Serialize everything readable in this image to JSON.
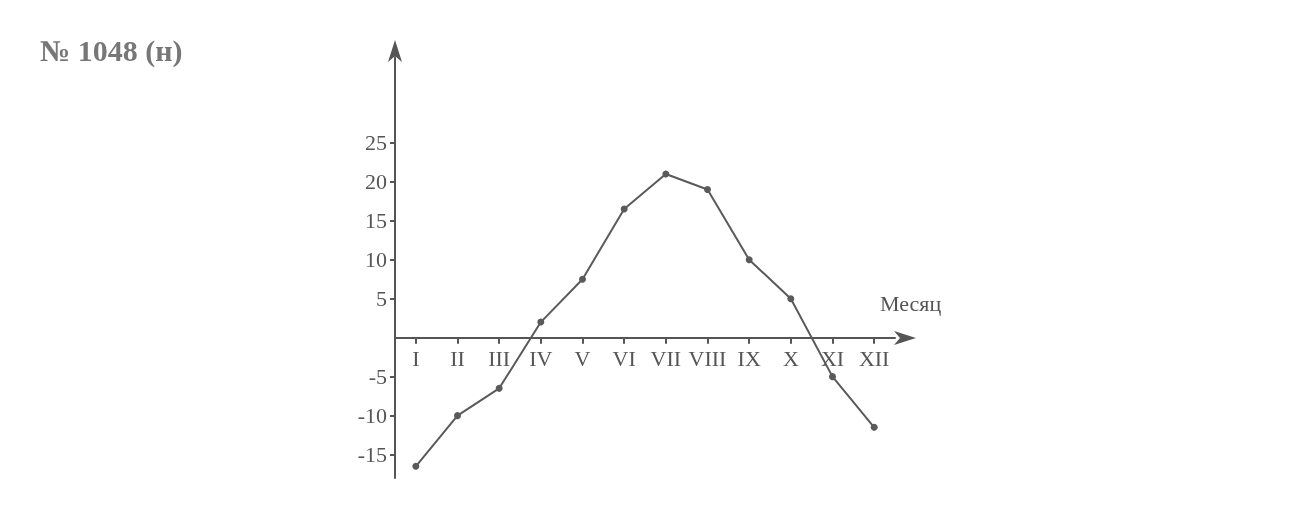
{
  "chart_data": {
    "type": "line",
    "title": "№ 1048 (н)",
    "xlabel": "Месяц",
    "categories": [
      "I",
      "II",
      "III",
      "IV",
      "V",
      "VI",
      "VII",
      "VIII",
      "IX",
      "X",
      "XI",
      "XII"
    ],
    "series": [
      {
        "color": "#5a5a5a",
        "values": [
          -16.5,
          -10,
          -6.5,
          2,
          7.5,
          16.5,
          21,
          19,
          10,
          5,
          -5,
          -11.5
        ]
      }
    ],
    "ylim": [
      -18,
      36
    ],
    "yticks": [
      -15,
      -10,
      -5,
      5,
      10,
      15,
      20,
      25
    ],
    "grid": false,
    "marker": "circle",
    "line_style": "solid"
  }
}
